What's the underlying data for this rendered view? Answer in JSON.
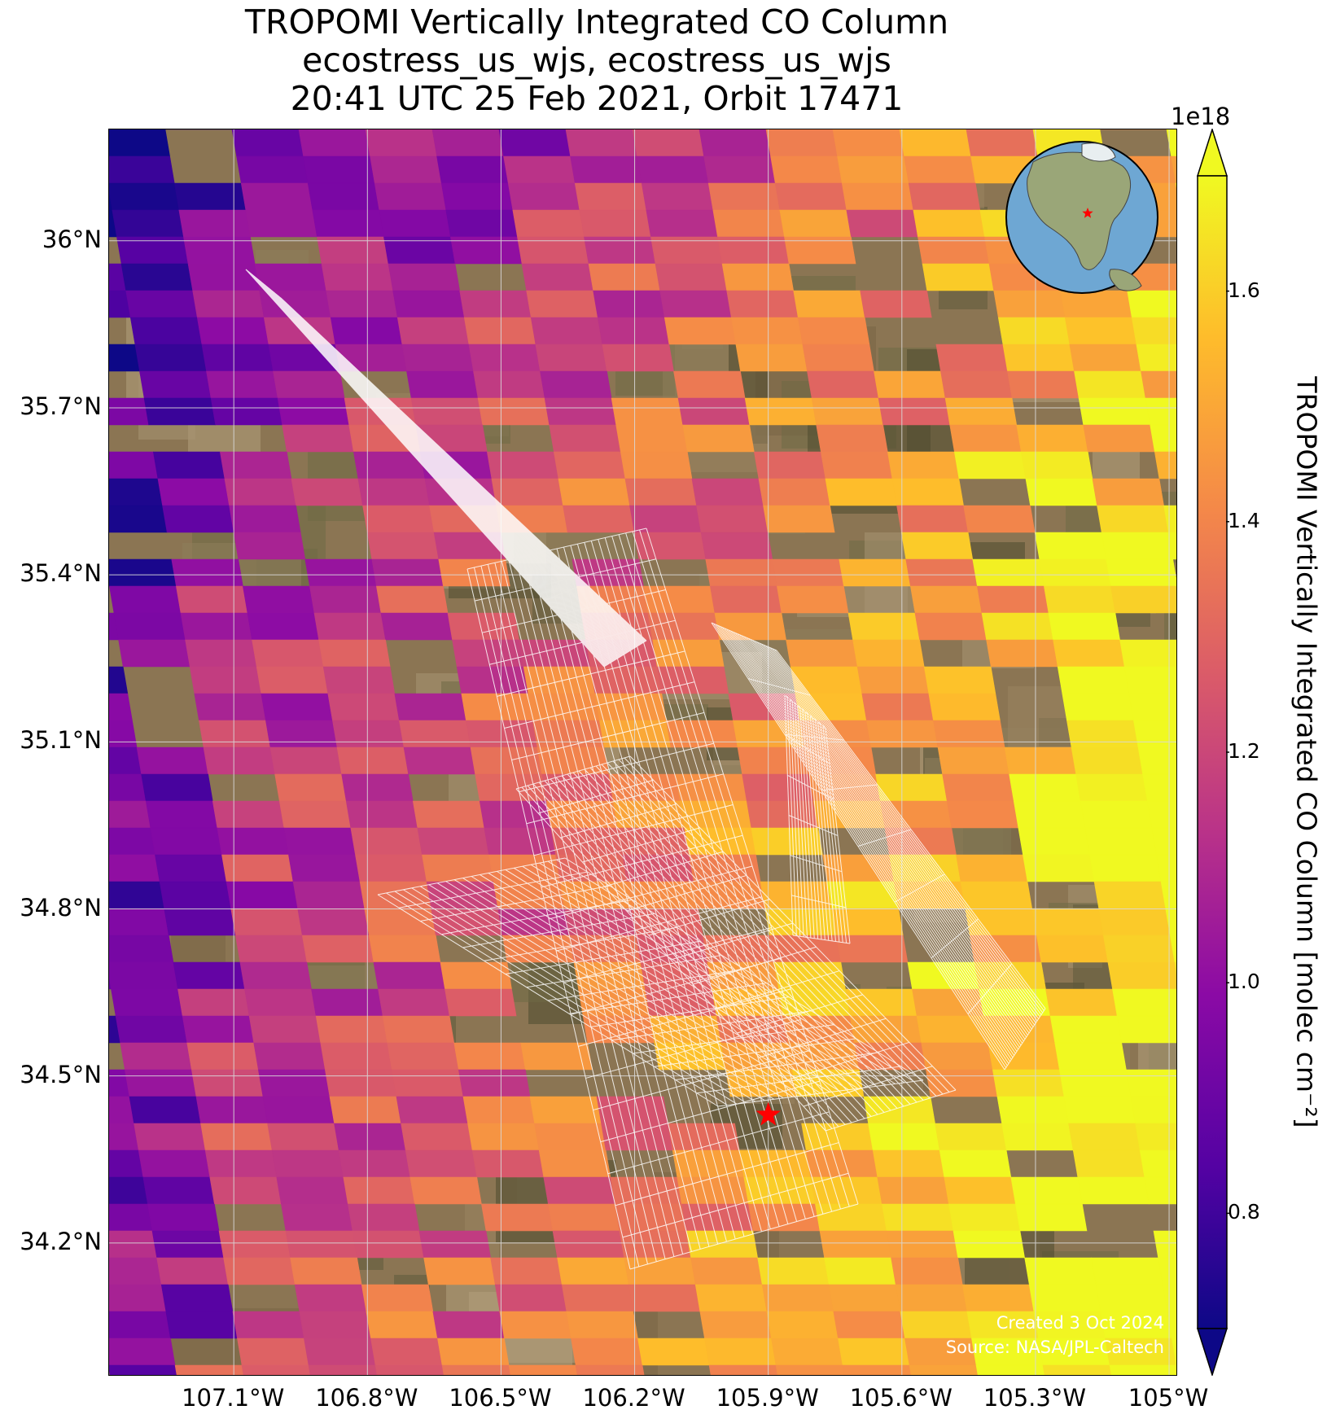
{
  "title": {
    "line1": "TROPOMI Vertically Integrated CO Column",
    "line2": "ecostress_us_wjs, ecostress_us_wjs",
    "line3": "20:41 UTC 25 Feb 2021, Orbit 17471"
  },
  "map": {
    "lat_ticks": [
      "36°N",
      "35.7°N",
      "35.4°N",
      "35.1°N",
      "34.8°N",
      "34.5°N",
      "34.2°N"
    ],
    "lat_values": [
      36.0,
      35.7,
      35.4,
      35.1,
      34.8,
      34.5,
      34.2
    ],
    "lon_ticks": [
      "107.1°W",
      "106.8°W",
      "106.5°W",
      "106.2°W",
      "105.9°W",
      "105.6°W",
      "105.3°W",
      "105°W"
    ],
    "lon_values": [
      -107.1,
      -106.8,
      -106.5,
      -106.2,
      -105.9,
      -105.6,
      -105.3,
      -105.0
    ],
    "extent": {
      "lon_min": -107.38,
      "lon_max": -104.98,
      "lat_min": 33.96,
      "lat_max": 36.2
    },
    "gridlines": true,
    "target_marker": {
      "lon": -105.9,
      "lat": 34.43,
      "color": "#ff0000",
      "shape": "star"
    },
    "basemap": "satellite-imagery",
    "inset_globe": {
      "position": "top-right",
      "marker_color": "#ff0000",
      "ocean_color": "#6ea7d3",
      "land_color": "#9aa678"
    },
    "credit_created": "Created 3 Oct 2024",
    "credit_source": "Source: NASA/JPL-Caltech"
  },
  "colorbar": {
    "label": "TROPOMI Vertically Integrated CO Column [molec cm⁻²]",
    "exponent": "1e18",
    "ticks": [
      "0.8",
      "1.0",
      "1.2",
      "1.4",
      "1.6"
    ],
    "tick_values": [
      0.8,
      1.0,
      1.2,
      1.4,
      1.6
    ],
    "vmin": 0.7,
    "vmax": 1.7,
    "colormap": "plasma",
    "extend": "both"
  }
}
